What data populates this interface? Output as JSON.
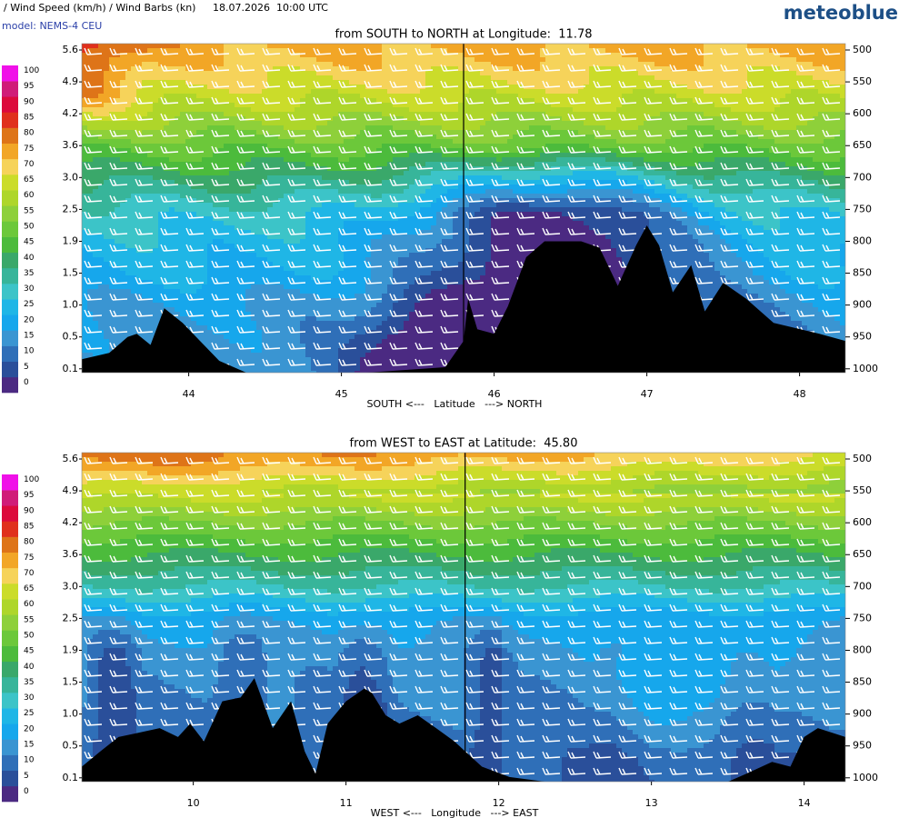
{
  "header": {
    "title": "/ Wind Speed (km/h) / Wind Barbs (kn)",
    "datetime": "18.07.2026  10:00 UTC",
    "model": "model: NEMS-4 CEU",
    "brand": "meteoblue"
  },
  "colorbar": {
    "levels": [
      0,
      5,
      10,
      15,
      20,
      25,
      30,
      35,
      40,
      45,
      50,
      55,
      60,
      65,
      70,
      75,
      80,
      85,
      90,
      95,
      100
    ],
    "colors": [
      "#4b2a82",
      "#2a4f9a",
      "#2f6fb8",
      "#3a95d2",
      "#16a7ec",
      "#1fb6e6",
      "#3cc4c8",
      "#37b59a",
      "#3aa86a",
      "#4cbb3c",
      "#6cc83a",
      "#8ed03a",
      "#aed62a",
      "#cbdc2a",
      "#f6d35a",
      "#f2a626",
      "#de7418",
      "#e0301c",
      "#dc0a3c",
      "#d01c78",
      "#f010e8"
    ]
  },
  "chart_data": [
    {
      "type": "cross-section",
      "title": "from SOUTH to NORTH at Longitude:  11.78",
      "x_label": "SOUTH <---   Latitude   ---> NORTH",
      "xlim": [
        43.3,
        48.3
      ],
      "xticks": [
        44,
        45,
        46,
        47,
        48
      ],
      "y2lim": [
        1006,
        490
      ],
      "y2ticks": [
        500,
        550,
        600,
        650,
        700,
        750,
        800,
        850,
        900,
        950,
        1000
      ],
      "yticks": [
        5.6,
        4.9,
        4.2,
        3.6,
        {
          "value": 3,
          "label": "3.0"
        },
        2.5,
        1.9,
        1.5,
        {
          "value": 1,
          "label": "1.0"
        },
        0.5,
        0.1
      ],
      "marker_x": 45.8,
      "terrain": {
        "x": [
          43.3,
          43.48,
          43.6,
          43.66,
          43.75,
          43.84,
          43.96,
          44.2,
          44.38,
          45.15,
          45.68,
          45.8,
          45.83,
          45.89,
          46.0,
          46.09,
          46.21,
          46.33,
          46.57,
          46.69,
          46.81,
          46.93,
          47.0,
          47.08,
          47.17,
          47.29,
          47.38,
          47.5,
          47.65,
          47.83,
          48.13,
          48.3
        ],
        "values": [
          0.22,
          0.3,
          0.5,
          0.55,
          0.4,
          0.95,
          0.72,
          0.2,
          0.05,
          0.05,
          0.12,
          0.45,
          1.1,
          0.62,
          0.55,
          0.98,
          1.7,
          1.9,
          1.9,
          1.82,
          1.3,
          1.85,
          2.2,
          1.85,
          1.2,
          1.6,
          0.9,
          1.35,
          1.1,
          0.72,
          0.55,
          0.45
        ]
      }
    },
    {
      "type": "cross-section",
      "title": "from WEST to EAST at Latitude:  45.80",
      "x_label": "WEST <---   Longitude   ---> EAST",
      "xlim": [
        9.27,
        14.27
      ],
      "xticks": [
        10,
        11,
        12,
        13,
        14
      ],
      "y2lim": [
        1006,
        490
      ],
      "y2ticks": [
        500,
        550,
        600,
        650,
        700,
        750,
        800,
        850,
        900,
        950,
        1000
      ],
      "yticks": [
        5.6,
        4.9,
        4.2,
        3.6,
        {
          "value": 3,
          "label": "3.0"
        },
        2.5,
        1.9,
        1.5,
        {
          "value": 1,
          "label": "1.0"
        },
        0.5,
        0.1
      ],
      "marker_x": 11.78,
      "terrain": {
        "x": [
          9.27,
          9.39,
          9.51,
          9.63,
          9.78,
          9.9,
          9.98,
          10.07,
          10.19,
          10.31,
          10.4,
          10.52,
          10.64,
          10.73,
          10.8,
          10.88,
          11.0,
          11.12,
          11.17,
          11.26,
          11.35,
          11.47,
          11.59,
          11.71,
          11.89,
          12.07,
          12.31,
          13.5,
          13.62,
          13.79,
          13.91,
          14.0,
          14.09,
          14.27
        ],
        "values": [
          0.24,
          0.43,
          0.64,
          0.7,
          0.78,
          0.64,
          0.85,
          0.57,
          1.2,
          1.26,
          1.55,
          0.78,
          1.2,
          0.43,
          0.15,
          0.85,
          1.2,
          1.4,
          1.33,
          0.98,
          0.85,
          0.98,
          0.78,
          0.57,
          0.24,
          0.11,
          0.05,
          0.05,
          0.15,
          0.3,
          0.24,
          0.64,
          0.78,
          0.64
        ]
      }
    }
  ]
}
